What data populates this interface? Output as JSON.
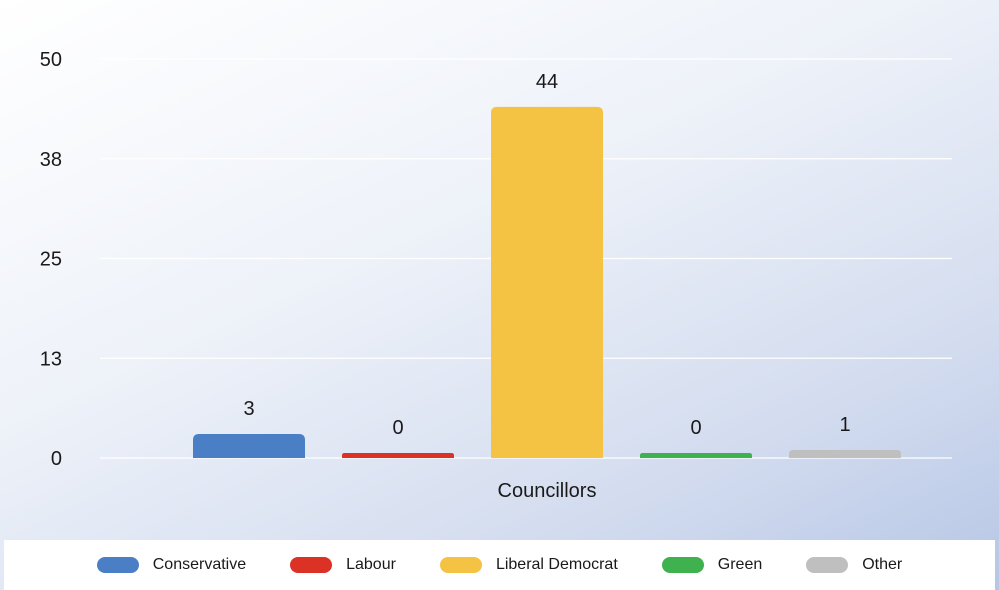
{
  "chart_data": {
    "type": "bar",
    "title": "",
    "categories": [
      "Councillors"
    ],
    "series": [
      {
        "name": "Conservative",
        "values": [
          3
        ],
        "color": "#4a7fc6"
      },
      {
        "name": "Labour",
        "values": [
          0
        ],
        "color": "#dc3125"
      },
      {
        "name": "Liberal Democrat",
        "values": [
          44
        ],
        "color": "#f4c343"
      },
      {
        "name": "Green",
        "values": [
          0
        ],
        "color": "#3fb24f"
      },
      {
        "name": "Other",
        "values": [
          1
        ],
        "color": "#bfbfbf"
      }
    ],
    "yticks": [
      "0",
      "13",
      "25",
      "38",
      "50"
    ],
    "ylim": [
      0,
      50
    ],
    "xlabel": "",
    "ylabel": "",
    "grid": true,
    "legend_position": "bottom"
  }
}
